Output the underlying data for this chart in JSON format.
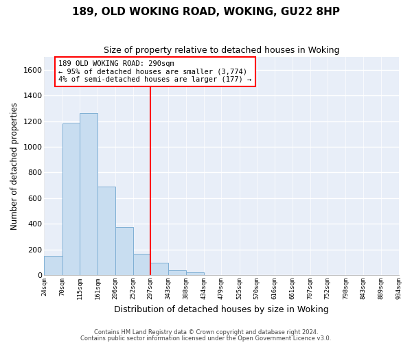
{
  "title": "189, OLD WOKING ROAD, WOKING, GU22 8HP",
  "subtitle": "Size of property relative to detached houses in Woking",
  "xlabel": "Distribution of detached houses by size in Woking",
  "ylabel": "Number of detached properties",
  "bar_color": "#c8ddf0",
  "bar_edge_color": "#7fafd4",
  "bin_edges": [
    24,
    70,
    115,
    161,
    206,
    252,
    297,
    343,
    388,
    434,
    479,
    525,
    570,
    616,
    661,
    707,
    752,
    798,
    843,
    889,
    934
  ],
  "bin_labels": [
    "24sqm",
    "70sqm",
    "115sqm",
    "161sqm",
    "206sqm",
    "252sqm",
    "297sqm",
    "343sqm",
    "388sqm",
    "434sqm",
    "479sqm",
    "525sqm",
    "570sqm",
    "616sqm",
    "661sqm",
    "707sqm",
    "752sqm",
    "798sqm",
    "843sqm",
    "889sqm",
    "934sqm"
  ],
  "bar_heights": [
    150,
    1180,
    1260,
    690,
    375,
    165,
    95,
    38,
    22,
    0,
    0,
    0,
    0,
    0,
    0,
    0,
    0,
    0,
    0,
    0
  ],
  "ylim": [
    0,
    1700
  ],
  "yticks": [
    0,
    200,
    400,
    600,
    800,
    1000,
    1200,
    1400,
    1600
  ],
  "vline_bin_index": 6,
  "annotation_line1": "189 OLD WOKING ROAD: 290sqm",
  "annotation_line2": "← 95% of detached houses are smaller (3,774)",
  "annotation_line3": "4% of semi-detached houses are larger (177) →",
  "footer1": "Contains HM Land Registry data © Crown copyright and database right 2024.",
  "footer2": "Contains public sector information licensed under the Open Government Licence v3.0.",
  "figure_bg": "#ffffff",
  "plot_bg": "#e8eef8",
  "grid_color": "#ffffff"
}
